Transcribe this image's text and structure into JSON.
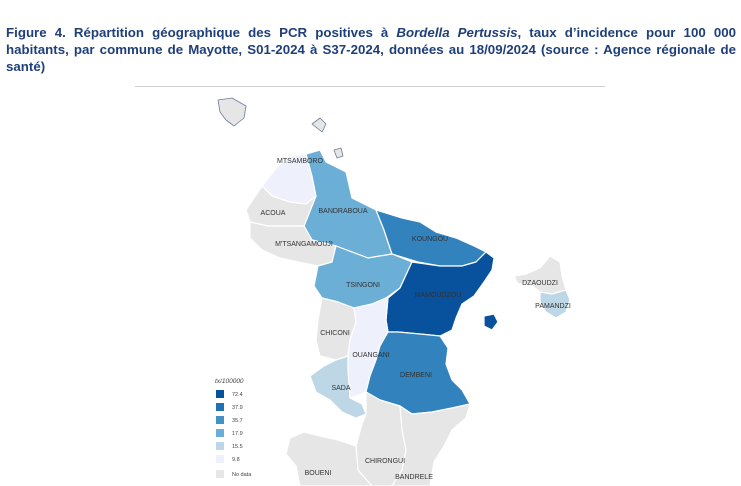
{
  "caption": {
    "part1": "Figure 4. Répartition géographique des PCR positives à ",
    "species": "Bordella Pertussis",
    "part2": ", taux d’incidence pour 100 000 habitants, par commune de Mayotte, S01-2024 à S37-2024, données au 18/09/2024 (source : Agence régionale de santé)"
  },
  "map": {
    "communes": [
      {
        "id": "mtsamboro",
        "label": "MTSAMBORO",
        "class": 1
      },
      {
        "id": "acoua",
        "label": "ACOUA",
        "class": 0
      },
      {
        "id": "bandraboua",
        "label": "BANDRABOUA",
        "class": 3
      },
      {
        "id": "mtsangamouji",
        "label": "M'TSANGAMOUJI",
        "class": 0
      },
      {
        "id": "koungou",
        "label": "KOUNGOU",
        "class": 4
      },
      {
        "id": "tsingoni",
        "label": "TSINGONI",
        "class": 3
      },
      {
        "id": "mamoudzou",
        "label": "MAMOUDZOU",
        "class": 5
      },
      {
        "id": "dzaoudzi",
        "label": "DZAOUDZI",
        "class": 0
      },
      {
        "id": "pamandzi",
        "label": "PAMANDZI",
        "class": 2
      },
      {
        "id": "chiconi",
        "label": "CHICONI",
        "class": 0
      },
      {
        "id": "ouangani",
        "label": "OUANGANI",
        "class": 1
      },
      {
        "id": "sada",
        "label": "SADA",
        "class": 2
      },
      {
        "id": "dembeni",
        "label": "DEMBENI",
        "class": 4
      },
      {
        "id": "chirongui",
        "label": "CHIRONGUI",
        "class": 0
      },
      {
        "id": "bouéni",
        "label": "BOUENI",
        "class": 0
      },
      {
        "id": "bandrele",
        "label": "BANDRELE",
        "class": 0
      }
    ],
    "colors": {
      "no_data": "#e6e6e6",
      "classes": [
        "#e6e6e6",
        "#eef0fb",
        "#bdd7e7",
        "#6baed6",
        "#3182bd",
        "#08519c"
      ]
    }
  },
  "legend": {
    "title": "tx/100000",
    "items": [
      {
        "label": "72.4",
        "color": "#08519c"
      },
      {
        "label": "37.9",
        "color": "#2171b5"
      },
      {
        "label": "35.7",
        "color": "#4292c6"
      },
      {
        "label": "17.9",
        "color": "#6baed6"
      },
      {
        "label": "15.5",
        "color": "#bdd7e7"
      },
      {
        "label": "9.8",
        "color": "#eef0fb"
      }
    ],
    "no_data_label": "No data",
    "no_data_color": "#e6e6e6"
  }
}
